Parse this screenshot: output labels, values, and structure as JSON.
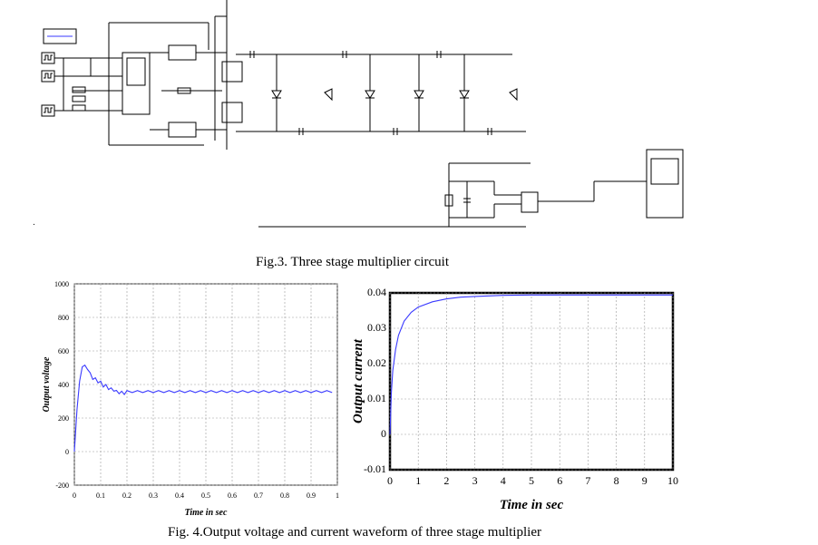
{
  "figure3": {
    "caption": "Fig.3. Three stage multiplier circuit"
  },
  "figure4": {
    "caption": "Fig. 4.Output voltage and current waveform of three stage multiplier"
  },
  "colors": {
    "trace": "#3a3aff",
    "grid": "#9a9a9a",
    "plot_bg": "#ffffff",
    "outer_bg": "#ffffff"
  },
  "chart_data": [
    {
      "type": "line",
      "title": "",
      "xlabel": "Time in sec",
      "ylabel": "Output voltage",
      "xlim": [
        0,
        1
      ],
      "ylim": [
        -200,
        1000
      ],
      "x_ticks": [
        "0",
        "0.1",
        "0.2",
        "0.3",
        "0.4",
        "0.5",
        "0.6",
        "0.7",
        "0.8",
        "0.9",
        "1"
      ],
      "x_tick_values": [
        0,
        0.1,
        0.2,
        0.3,
        0.4,
        0.5,
        0.6,
        0.7,
        0.8,
        0.9,
        1
      ],
      "y_ticks": [
        "-200",
        "0",
        "200",
        "400",
        "600",
        "800",
        "1000"
      ],
      "y_tick_values": [
        -200,
        0,
        200,
        400,
        600,
        800,
        1000
      ],
      "grid": true,
      "series": [
        {
          "x": [
            0,
            0.01,
            0.02,
            0.03,
            0.04,
            0.05,
            0.06,
            0.07,
            0.08,
            0.09,
            0.1,
            0.11,
            0.12,
            0.13,
            0.14,
            0.15,
            0.16,
            0.17,
            0.18,
            0.19,
            0.2,
            0.22,
            0.25,
            0.3,
            0.4,
            0.5,
            0.6,
            0.7,
            0.8,
            0.9,
            1.0
          ],
          "y": [
            0,
            250,
            420,
            505,
            515,
            490,
            470,
            430,
            440,
            410,
            420,
            385,
            400,
            370,
            380,
            360,
            365,
            345,
            360,
            340,
            350,
            360,
            355,
            358,
            358,
            358,
            358,
            358,
            358,
            358,
            358
          ]
        }
      ]
    },
    {
      "type": "line",
      "title": "",
      "xlabel": "Time in sec",
      "ylabel": "Output current",
      "xlim": [
        0,
        10
      ],
      "ylim": [
        -0.01,
        0.04
      ],
      "x_ticks": [
        "0",
        "1",
        "2",
        "3",
        "4",
        "5",
        "6",
        "7",
        "8",
        "9",
        "10"
      ],
      "x_tick_values": [
        0,
        1,
        2,
        3,
        4,
        5,
        6,
        7,
        8,
        9,
        10
      ],
      "y_ticks": [
        "-0.01",
        "0",
        "0.01",
        "0.02",
        "0.03",
        "0.04"
      ],
      "y_tick_values": [
        -0.01,
        0,
        0.01,
        0.02,
        0.03,
        0.04
      ],
      "grid": true,
      "series": [
        {
          "x": [
            0,
            0.05,
            0.1,
            0.2,
            0.3,
            0.5,
            0.75,
            1.0,
            1.5,
            2.0,
            2.5,
            3.0,
            4.0,
            5.0,
            6.0,
            7.0,
            8.0,
            9.0,
            10.0
          ],
          "y": [
            0,
            0.012,
            0.018,
            0.024,
            0.028,
            0.032,
            0.0345,
            0.036,
            0.0375,
            0.0383,
            0.0388,
            0.039,
            0.0393,
            0.0394,
            0.0394,
            0.0394,
            0.0394,
            0.0394,
            0.0394
          ]
        }
      ]
    }
  ]
}
